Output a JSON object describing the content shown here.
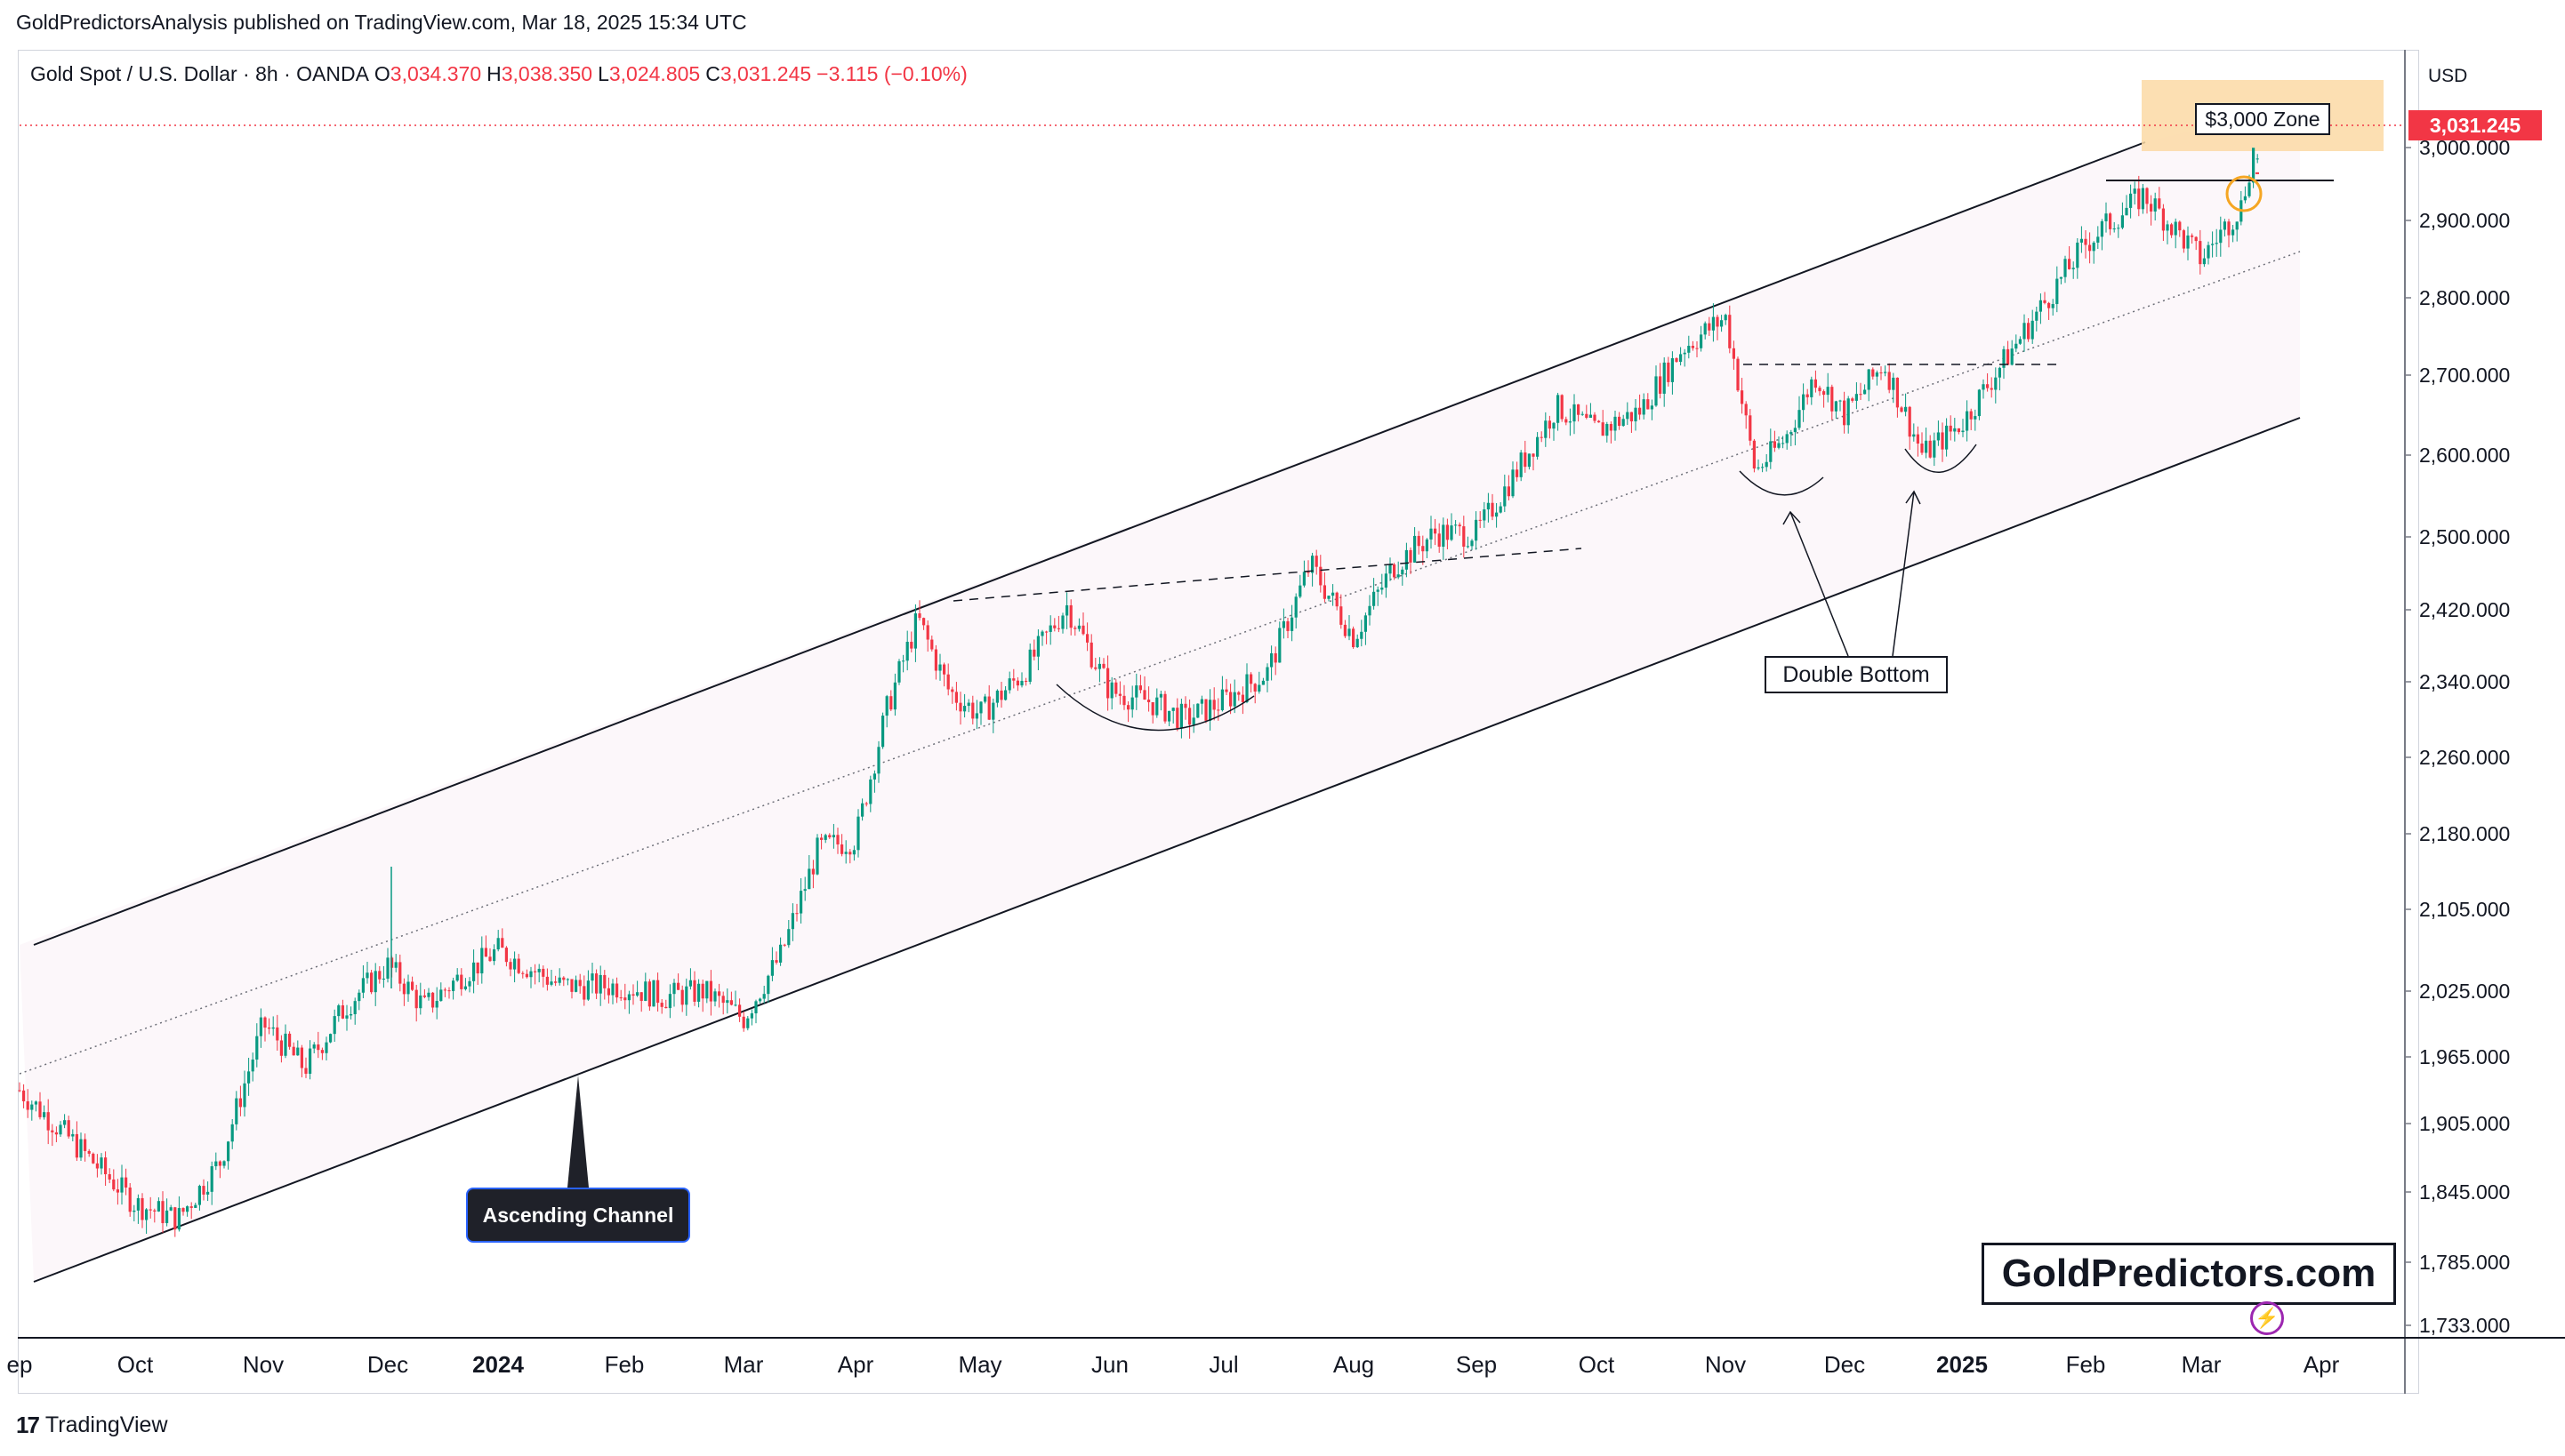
{
  "header": {
    "publisher": "GoldPredictorsAnalysis published on TradingView.com, Mar 18, 2025 15:34 UTC"
  },
  "legend": {
    "symbol": "Gold Spot / U.S. Dollar · 8h · OANDA",
    "open_label": "O",
    "open": "3,034.370",
    "high_label": "H",
    "high": "3,038.350",
    "low_label": "L",
    "low": "3,024.805",
    "close_label": "C",
    "close": "3,031.245",
    "change": "−3.115 (−0.10%)"
  },
  "price_axis": {
    "currency": "USD",
    "current_price": "3,031.245",
    "current_price_color": "#f23645"
  },
  "annotations": {
    "ascending_channel": "Ascending Channel",
    "double_bottom": "Double Bottom",
    "zone": "$3,000 Zone",
    "watermark": "GoldPredictors.com"
  },
  "footer": {
    "brand": "TradingView",
    "logo_text": "17"
  },
  "colors": {
    "up_candle": "#089981",
    "down_candle": "#f23645",
    "channel_fill": "#fcf7fa",
    "zone_fill": "#fbd9a4",
    "circle": "#f5a623"
  },
  "chart_data": {
    "type": "candlestick",
    "timeframe": "8h",
    "ylim": [
      1733,
      3100
    ],
    "y_ticks": [
      "3,000.000",
      "2,900.000",
      "2,800.000",
      "2,700.000",
      "2,600.000",
      "2,500.000",
      "2,420.000",
      "2,340.000",
      "2,260.000",
      "2,180.000",
      "2,105.000",
      "2,025.000",
      "1,965.000",
      "1,905.000",
      "1,845.000",
      "1,785.000",
      "1,733.000"
    ],
    "x_ticks": [
      {
        "label": "ep",
        "bold": false
      },
      {
        "label": "Oct",
        "bold": false
      },
      {
        "label": "Nov",
        "bold": false
      },
      {
        "label": "Dec",
        "bold": false
      },
      {
        "label": "2024",
        "bold": true
      },
      {
        "label": "Feb",
        "bold": false
      },
      {
        "label": "Mar",
        "bold": false
      },
      {
        "label": "Apr",
        "bold": false
      },
      {
        "label": "May",
        "bold": false
      },
      {
        "label": "Jun",
        "bold": false
      },
      {
        "label": "Jul",
        "bold": false
      },
      {
        "label": "Aug",
        "bold": false
      },
      {
        "label": "Sep",
        "bold": false
      },
      {
        "label": "Oct",
        "bold": false
      },
      {
        "label": "Nov",
        "bold": false
      },
      {
        "label": "Dec",
        "bold": false
      },
      {
        "label": "2025",
        "bold": true
      },
      {
        "label": "Feb",
        "bold": false
      },
      {
        "label": "Mar",
        "bold": false
      },
      {
        "label": "Apr",
        "bold": false
      }
    ],
    "series": [
      {
        "label": "ep",
        "price": 1935
      },
      {
        "label": "Oct",
        "price": 1835
      },
      {
        "label": "Oct",
        "price": 1822
      },
      {
        "label": "Oct",
        "price": 1872
      },
      {
        "label": "Nov",
        "price": 1995
      },
      {
        "label": "Nov",
        "price": 1955
      },
      {
        "label": "Nov",
        "price": 2012
      },
      {
        "label": "Dec",
        "price": 2050
      },
      {
        "label": "Dec",
        "price": 2010
      },
      {
        "label": "Dec",
        "price": 2040
      },
      {
        "label": "2024",
        "price": 2065
      },
      {
        "label": "2024",
        "price": 2030
      },
      {
        "label": "Feb",
        "price": 2030
      },
      {
        "label": "Feb",
        "price": 2020
      },
      {
        "label": "Feb",
        "price": 2025
      },
      {
        "label": "Mar",
        "price": 2000
      },
      {
        "label": "Mar",
        "price": 2060
      },
      {
        "label": "Mar",
        "price": 2165
      },
      {
        "label": "Apr",
        "price": 2175
      },
      {
        "label": "Apr",
        "price": 2310
      },
      {
        "label": "Apr",
        "price": 2410
      },
      {
        "label": "Apr",
        "price": 2330
      },
      {
        "label": "May",
        "price": 2305
      },
      {
        "label": "May",
        "price": 2350
      },
      {
        "label": "May",
        "price": 2425
      },
      {
        "label": "Jun",
        "price": 2330
      },
      {
        "label": "Jun",
        "price": 2320
      },
      {
        "label": "Jun",
        "price": 2300
      },
      {
        "label": "Jul",
        "price": 2320
      },
      {
        "label": "Jul",
        "price": 2350
      },
      {
        "label": "Jul",
        "price": 2470
      },
      {
        "label": "Aug",
        "price": 2390
      },
      {
        "label": "Aug",
        "price": 2470
      },
      {
        "label": "Aug",
        "price": 2505
      },
      {
        "label": "Sep",
        "price": 2505
      },
      {
        "label": "Sep",
        "price": 2580
      },
      {
        "label": "Sep",
        "price": 2660
      },
      {
        "label": "Oct",
        "price": 2630
      },
      {
        "label": "Oct",
        "price": 2655
      },
      {
        "label": "Oct",
        "price": 2735
      },
      {
        "label": "Nov",
        "price": 2775
      },
      {
        "label": "Nov",
        "price": 2580
      },
      {
        "label": "Nov",
        "price": 2620
      },
      {
        "label": "Nov",
        "price": 2700
      },
      {
        "label": "Dec",
        "price": 2650
      },
      {
        "label": "Dec",
        "price": 2715
      },
      {
        "label": "Dec",
        "price": 2600
      },
      {
        "label": "2025",
        "price": 2640
      },
      {
        "label": "2025",
        "price": 2755
      },
      {
        "label": "Feb",
        "price": 2870
      },
      {
        "label": "Feb",
        "price": 2935
      },
      {
        "label": "Mar",
        "price": 2850
      },
      {
        "label": "Mar",
        "price": 2920
      },
      {
        "label": "Mar",
        "price": 3031
      }
    ]
  }
}
